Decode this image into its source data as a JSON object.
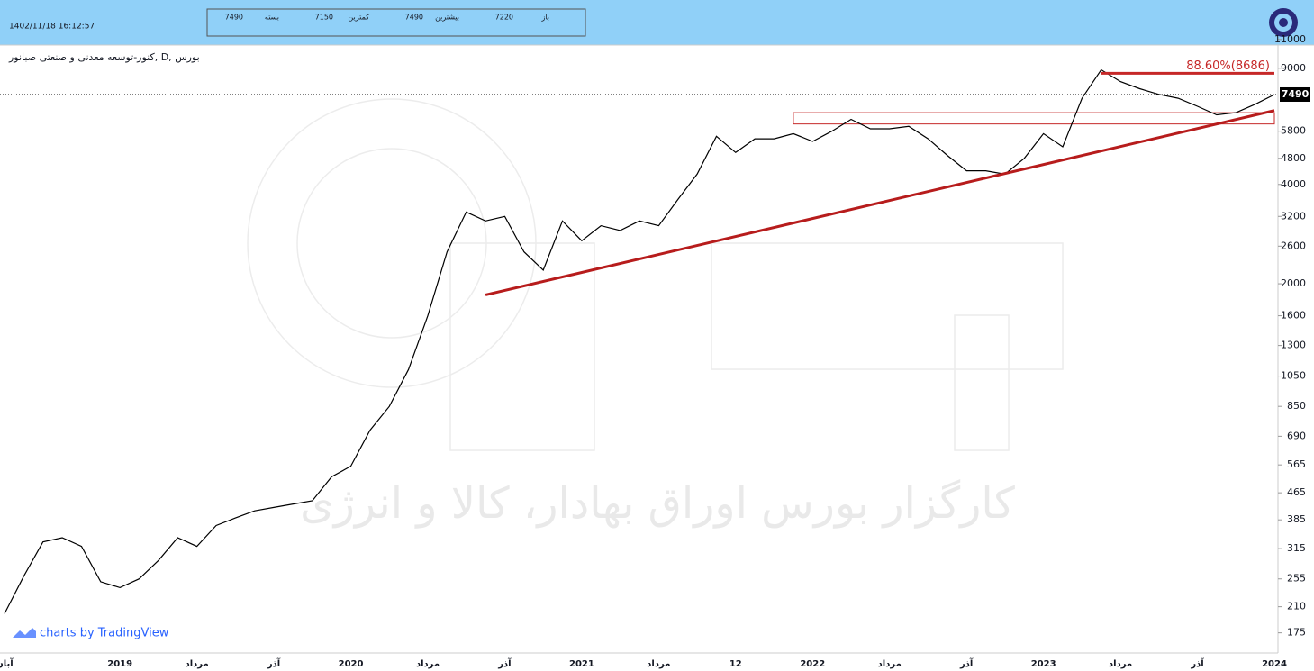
{
  "header": {
    "timestamp": "1402/11/18 16:12:57",
    "ohlc": [
      {
        "label": "باز",
        "value": 7220
      },
      {
        "label": "بیشترین",
        "value": 7490
      },
      {
        "label": "کمترین",
        "value": 7150
      },
      {
        "label": "بسته",
        "value": 7490
      }
    ]
  },
  "chart_data": {
    "type": "line",
    "title": "کنور-توسعه معدنی و صنعتی صبانور, D, بورس",
    "watermark": "کارگزار بورس اوراق بهادار، کالا و انرژی",
    "credit": "charts by TradingView",
    "categories": [
      "آبان",
      null,
      null,
      null,
      null,
      null,
      "2019",
      null,
      null,
      null,
      "مرداد",
      null,
      null,
      null,
      "آذر",
      null,
      null,
      null,
      "2020",
      null,
      null,
      null,
      "مرداد",
      null,
      null,
      null,
      "آذر",
      null,
      null,
      null,
      "2021",
      null,
      null,
      null,
      "مرداد",
      null,
      null,
      null,
      "12",
      null,
      null,
      null,
      "2022",
      null,
      null,
      null,
      "مرداد",
      null,
      null,
      null,
      "آذر",
      null,
      null,
      null,
      "2023",
      null,
      null,
      null,
      "مرداد",
      null,
      null,
      null,
      "آذر",
      null,
      null,
      null,
      "2024"
    ],
    "series": [
      {
        "color": "#000000",
        "values": [
          200,
          260,
          330,
          340,
          320,
          250,
          240,
          255,
          290,
          340,
          320,
          370,
          390,
          410,
          420,
          430,
          440,
          520,
          560,
          720,
          850,
          1100,
          1600,
          2500,
          3300,
          3100,
          3200,
          2500,
          2200,
          3100,
          2700,
          3000,
          2900,
          3100,
          3000,
          3600,
          4300,
          5600,
          5000,
          5500,
          5500,
          5700,
          5400,
          5800,
          6300,
          5900,
          5900,
          6000,
          5500,
          4900,
          4400,
          4400,
          4300,
          4800,
          5700,
          5200,
          7300,
          8900,
          8200,
          7800,
          7500,
          7300,
          6900,
          6500,
          6600,
          7000,
          7490
        ]
      }
    ],
    "last_value": 7490,
    "log_scale": true,
    "ylim": [
      165,
      12000
    ],
    "yticks": [
      175,
      210,
      255,
      315,
      385,
      465,
      565,
      690,
      850,
      1050,
      1300,
      1600,
      2000,
      2600,
      3200,
      4000,
      4800,
      5800,
      9000,
      11000
    ],
    "trendline": {
      "color": "#b71c1c",
      "from": {
        "x": 25,
        "y": 1850
      },
      "to": {
        "x": 66,
        "y": 6700
      }
    },
    "zone": {
      "color": "#c62828",
      "x": [
        41,
        66
      ],
      "y": [
        6100,
        6600
      ]
    },
    "resistance": {
      "color": "#c62828",
      "value": 8686,
      "x": [
        57,
        66
      ],
      "label": "88.60%(8686)"
    }
  }
}
